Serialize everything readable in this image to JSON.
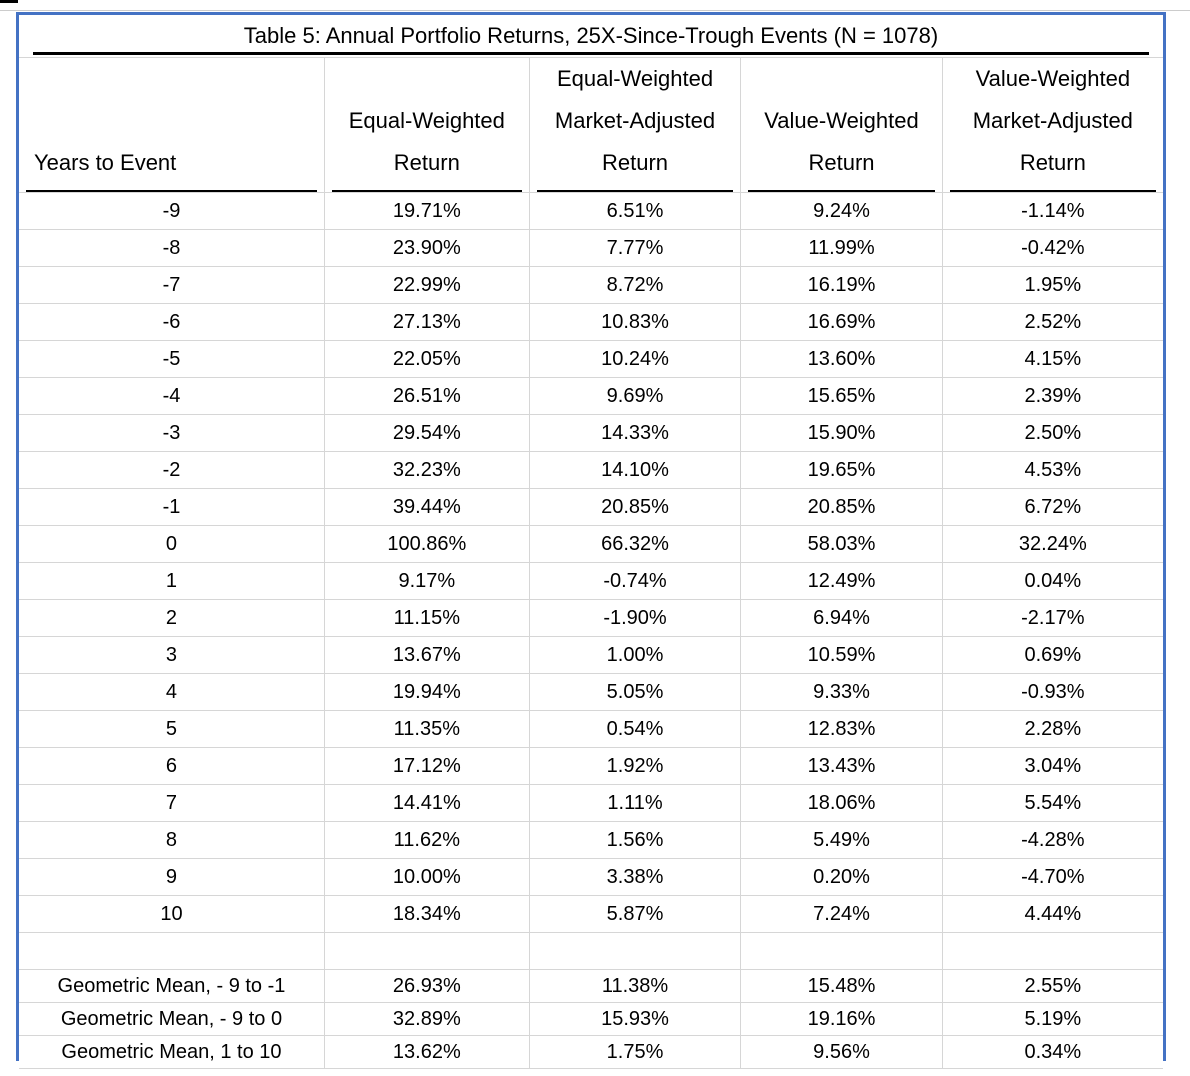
{
  "title": "Table 5: Annual Portfolio Returns, 25X-Since-Trough Events (N = 1078)",
  "table": {
    "columns": [
      "Years to Event",
      "Equal-Weighted\nReturn",
      "Equal-Weighted\nMarket-Adjusted\nReturn",
      "Value-Weighted\nReturn",
      "Value-Weighted\nMarket-Adjusted\nReturn"
    ],
    "rows": [
      [
        "-9",
        "19.71%",
        "6.51%",
        "9.24%",
        "-1.14%"
      ],
      [
        "-8",
        "23.90%",
        "7.77%",
        "11.99%",
        "-0.42%"
      ],
      [
        "-7",
        "22.99%",
        "8.72%",
        "16.19%",
        "1.95%"
      ],
      [
        "-6",
        "27.13%",
        "10.83%",
        "16.69%",
        "2.52%"
      ],
      [
        "-5",
        "22.05%",
        "10.24%",
        "13.60%",
        "4.15%"
      ],
      [
        "-4",
        "26.51%",
        "9.69%",
        "15.65%",
        "2.39%"
      ],
      [
        "-3",
        "29.54%",
        "14.33%",
        "15.90%",
        "2.50%"
      ],
      [
        "-2",
        "32.23%",
        "14.10%",
        "19.65%",
        "4.53%"
      ],
      [
        "-1",
        "39.44%",
        "20.85%",
        "20.85%",
        "6.72%"
      ],
      [
        "0",
        "100.86%",
        "66.32%",
        "58.03%",
        "32.24%"
      ],
      [
        "1",
        "9.17%",
        "-0.74%",
        "12.49%",
        "0.04%"
      ],
      [
        "2",
        "11.15%",
        "-1.90%",
        "6.94%",
        "-2.17%"
      ],
      [
        "3",
        "13.67%",
        "1.00%",
        "10.59%",
        "0.69%"
      ],
      [
        "4",
        "19.94%",
        "5.05%",
        "9.33%",
        "-0.93%"
      ],
      [
        "5",
        "11.35%",
        "0.54%",
        "12.83%",
        "2.28%"
      ],
      [
        "6",
        "17.12%",
        "1.92%",
        "13.43%",
        "3.04%"
      ],
      [
        "7",
        "14.41%",
        "1.11%",
        "18.06%",
        "5.54%"
      ],
      [
        "8",
        "11.62%",
        "1.56%",
        "5.49%",
        "-4.28%"
      ],
      [
        "9",
        "10.00%",
        "3.38%",
        "0.20%",
        "-4.70%"
      ],
      [
        "10",
        "18.34%",
        "5.87%",
        "7.24%",
        "4.44%"
      ]
    ],
    "spacer_row": [
      "",
      "",
      "",
      "",
      ""
    ],
    "summary_rows": [
      [
        "Geometric Mean, - 9 to -1",
        "26.93%",
        "11.38%",
        "15.48%",
        "2.55%"
      ],
      [
        "Geometric Mean, - 9 to 0",
        "32.89%",
        "15.93%",
        "19.16%",
        "5.19%"
      ],
      [
        "Geometric Mean, 1 to 10",
        "13.62%",
        "1.75%",
        "9.56%",
        "0.34%"
      ]
    ]
  },
  "colors": {
    "frame_blue": "#4472C4",
    "gridline_gray": "#D6D6D6",
    "text_black": "#000000"
  }
}
